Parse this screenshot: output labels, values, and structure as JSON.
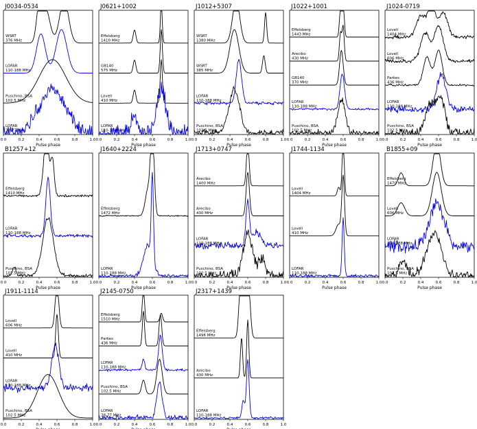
{
  "figure": {
    "x_axis_label": "Pulse phase",
    "x_ticks": [
      "0.0",
      "0.2",
      "0.4",
      "0.6",
      "0.8",
      "1.0"
    ],
    "colors": {
      "lofar": "#0000ee",
      "other": "#000000",
      "frame": "#000000"
    }
  },
  "chart_data": [
    {
      "type": "line",
      "title": "J0034-0534",
      "xlim": [
        0,
        1
      ],
      "xlabel": "Pulse phase",
      "series": [
        {
          "label": [
            "WSRT",
            "376 MHz"
          ],
          "color": "black",
          "peaks": [
            [
              0.4,
              0.03,
              0.7
            ],
            [
              0.47,
              0.05,
              0.8
            ],
            [
              0.68,
              0.05,
              1.0
            ]
          ]
        },
        {
          "label": [
            "LOFAR",
            "110-188 MHz"
          ],
          "color": "blue",
          "peaks": [
            [
              0.42,
              0.05,
              0.9
            ],
            [
              0.65,
              0.06,
              1.0
            ]
          ]
        },
        {
          "label": [
            "Puschino, BSA",
            "102.5 MHz"
          ],
          "color": "black",
          "peaks": [
            [
              0.55,
              0.15,
              1.0
            ]
          ]
        },
        {
          "label": [
            "LOFAR",
            "38-77 MHz"
          ],
          "color": "blue",
          "peaks": [
            [
              0.55,
              0.15,
              1.0
            ]
          ],
          "noise": 0.25
        }
      ]
    },
    {
      "type": "line",
      "title": "J0621+1002",
      "xlim": [
        0,
        1
      ],
      "xlabel": "Pulse phase",
      "series": [
        {
          "label": [
            "Effelsberg",
            "1410 MHz"
          ],
          "color": "black",
          "peaks": [
            [
              0.4,
              0.015,
              0.3
            ],
            [
              0.7,
              0.01,
              1.0
            ]
          ]
        },
        {
          "label": [
            "GB140",
            "575 MHz"
          ],
          "color": "black",
          "peaks": [
            [
              0.4,
              0.015,
              0.3
            ],
            [
              0.7,
              0.012,
              1.0
            ]
          ]
        },
        {
          "label": [
            "Lovell",
            "410 MHz"
          ],
          "color": "black",
          "peaks": [
            [
              0.4,
              0.015,
              0.3
            ],
            [
              0.7,
              0.012,
              1.0
            ]
          ]
        },
        {
          "label": [
            "LOFAR",
            "110-188 MHz"
          ],
          "color": "blue",
          "peaks": [
            [
              0.4,
              0.03,
              0.4
            ],
            [
              0.7,
              0.05,
              1.0
            ]
          ],
          "noise": 0.3
        }
      ]
    },
    {
      "type": "line",
      "title": "J1012+5307",
      "xlim": [
        0,
        1
      ],
      "xlabel": "Pulse phase",
      "series": [
        {
          "label": [
            "WSRT",
            "1380 MHz"
          ],
          "color": "black",
          "peaks": [
            [
              0.47,
              0.04,
              1.0
            ],
            [
              0.8,
              0.012,
              0.7
            ]
          ]
        },
        {
          "label": [
            "WSRT",
            "385 MHz"
          ],
          "color": "black",
          "peaks": [
            [
              0.45,
              0.05,
              1.0
            ],
            [
              0.78,
              0.015,
              0.4
            ]
          ]
        },
        {
          "label": [
            "LOFAR",
            "110-188 MHz"
          ],
          "color": "blue",
          "peaks": [
            [
              0.5,
              0.03,
              1.0
            ]
          ],
          "noise": 0.05
        },
        {
          "label": [
            "Puschino, BSA",
            "102.5 MHz"
          ],
          "color": "black",
          "peaks": [
            [
              0.45,
              0.06,
              1.0
            ]
          ],
          "noise": 0.12
        }
      ]
    },
    {
      "type": "line",
      "title": "J1022+1001",
      "xlim": [
        0,
        1
      ],
      "xlabel": "Pulse phase",
      "series": [
        {
          "label": [
            "Effelsberg",
            "1443 MHz"
          ],
          "color": "black",
          "peaks": [
            [
              0.57,
              0.012,
              0.8
            ],
            [
              0.6,
              0.012,
              1.0
            ]
          ]
        },
        {
          "label": [
            "Arecibo",
            "430 MHz"
          ],
          "color": "black",
          "peaks": [
            [
              0.57,
              0.012,
              0.8
            ],
            [
              0.6,
              0.012,
              1.0
            ]
          ]
        },
        {
          "label": [
            "GB140",
            "370 MHz"
          ],
          "color": "black",
          "peaks": [
            [
              0.58,
              0.02,
              1.0
            ]
          ]
        },
        {
          "label": [
            "LOFAR",
            "110-188 MHz"
          ],
          "color": "blue",
          "peaks": [
            [
              0.59,
              0.025,
              1.0
            ]
          ],
          "noise": 0.04
        },
        {
          "label": [
            "Puschino, BSA",
            "102.5 MHz"
          ],
          "color": "black",
          "peaks": [
            [
              0.58,
              0.04,
              1.0
            ]
          ],
          "noise": 0.15
        }
      ]
    },
    {
      "type": "line",
      "title": "J1024-0719",
      "xlim": [
        0,
        1
      ],
      "xlabel": "Pulse phase",
      "series": [
        {
          "label": [
            "Lovell",
            "1404 MHz"
          ],
          "color": "black",
          "peaks": [
            [
              0.4,
              0.05,
              0.6
            ],
            [
              0.52,
              0.04,
              1.0
            ],
            [
              0.65,
              0.05,
              0.7
            ]
          ],
          "noise": 0.08
        },
        {
          "label": [
            "Lovell",
            "606 MHz"
          ],
          "color": "black",
          "peaks": [
            [
              0.45,
              0.05,
              0.8
            ],
            [
              0.6,
              0.05,
              1.0
            ]
          ],
          "noise": 0.08
        },
        {
          "label": [
            "Parkes",
            "436 MHz"
          ],
          "color": "black",
          "peaks": [
            [
              0.47,
              0.04,
              0.8
            ],
            [
              0.6,
              0.04,
              1.0
            ]
          ],
          "noise": 0.04
        },
        {
          "label": [
            "LOFAR",
            "110-188 MHz"
          ],
          "color": "blue",
          "peaks": [
            [
              0.63,
              0.05,
              1.0
            ]
          ],
          "noise": 0.15
        },
        {
          "label": [
            "Puschino, BSA",
            "102.5 MHz"
          ],
          "color": "black",
          "peaks": [
            [
              0.5,
              0.05,
              0.8
            ],
            [
              0.62,
              0.05,
              1.0
            ]
          ],
          "noise": 0.18
        }
      ]
    },
    {
      "type": "line",
      "title": "B1257+12",
      "xlim": [
        0,
        1
      ],
      "xlabel": "Pulse phase",
      "series": [
        {
          "label": [
            "Effelsberg",
            "1410 MHz"
          ],
          "color": "black",
          "peaks": [
            [
              0.48,
              0.03,
              1.0
            ],
            [
              0.55,
              0.02,
              0.6
            ]
          ],
          "noise": 0.03
        },
        {
          "label": [
            "LOFAR",
            "110-188 MHz"
          ],
          "color": "blue",
          "peaks": [
            [
              0.5,
              0.025,
              1.0
            ]
          ],
          "noise": 0.04
        },
        {
          "label": [
            "Puschino, BSA",
            "102.5 MHz"
          ],
          "color": "black",
          "peaks": [
            [
              0.5,
              0.06,
              1.0
            ],
            [
              0.12,
              0.02,
              0.15
            ]
          ],
          "noise": 0.04
        }
      ]
    },
    {
      "type": "line",
      "title": "J1640+2224",
      "xlim": [
        0,
        1
      ],
      "xlabel": "Pulse phase",
      "series": [
        {
          "label": [
            "Effelsberg",
            "1472 MHz"
          ],
          "color": "black",
          "peaks": [
            [
              0.6,
              0.02,
              1.0
            ],
            [
              0.55,
              0.03,
              0.3
            ]
          ],
          "noise": 0.01
        },
        {
          "label": [
            "LOFAR",
            "110-188 MHz"
          ],
          "color": "blue",
          "peaks": [
            [
              0.6,
              0.012,
              1.0
            ],
            [
              0.55,
              0.05,
              0.35
            ]
          ],
          "noise": 0.04
        }
      ]
    },
    {
      "type": "line",
      "title": "J1713+0747",
      "xlim": [
        0,
        1
      ],
      "xlabel": "Pulse phase",
      "series": [
        {
          "label": [
            "Arecibo",
            "1400 MHz"
          ],
          "color": "black",
          "peaks": [
            [
              0.6,
              0.015,
              1.0
            ]
          ]
        },
        {
          "label": [
            "Arecibo",
            "430 MHz"
          ],
          "color": "black",
          "peaks": [
            [
              0.6,
              0.018,
              1.0
            ]
          ]
        },
        {
          "label": [
            "LOFAR",
            "110-188 MHz"
          ],
          "color": "blue",
          "peaks": [
            [
              0.6,
              0.02,
              1.0
            ],
            [
              0.7,
              0.05,
              0.3
            ]
          ],
          "noise": 0.12
        },
        {
          "label": [
            "Puschino, BSA",
            "102.5 MHz"
          ],
          "color": "black",
          "peaks": [
            [
              0.6,
              0.05,
              1.0
            ],
            [
              0.75,
              0.04,
              0.4
            ]
          ],
          "noise": 0.18
        }
      ]
    },
    {
      "type": "line",
      "title": "J1744-1134",
      "xlim": [
        0,
        1
      ],
      "xlabel": "Pulse phase",
      "series": [
        {
          "label": [
            "Lovell",
            "1404 MHz"
          ],
          "color": "black",
          "peaks": [
            [
              0.6,
              0.012,
              1.0
            ],
            [
              0.55,
              0.015,
              0.15
            ]
          ]
        },
        {
          "label": [
            "Lovell",
            "410 MHz"
          ],
          "color": "black",
          "peaks": [
            [
              0.6,
              0.015,
              1.0
            ],
            [
              0.55,
              0.03,
              0.2
            ]
          ]
        },
        {
          "label": [
            "LOFAR",
            "110-188 MHz"
          ],
          "color": "blue",
          "peaks": [
            [
              0.6,
              0.012,
              1.0
            ]
          ],
          "noise": 0.04
        }
      ]
    },
    {
      "type": "line",
      "title": "B1855+09",
      "xlim": [
        0,
        1
      ],
      "xlabel": "Pulse phase",
      "series": [
        {
          "label": [
            "Effelsberg",
            "1470 MHz"
          ],
          "color": "black",
          "peaks": [
            [
              0.58,
              0.04,
              1.0
            ],
            [
              0.18,
              0.03,
              0.3
            ]
          ]
        },
        {
          "label": [
            "Lovell",
            "606 MHz"
          ],
          "color": "black",
          "peaks": [
            [
              0.58,
              0.05,
              1.0
            ],
            [
              0.18,
              0.04,
              0.3
            ]
          ]
        },
        {
          "label": [
            "LOFAR",
            "110-188 MHz"
          ],
          "color": "blue",
          "peaks": [
            [
              0.58,
              0.08,
              1.0
            ]
          ],
          "noise": 0.22
        },
        {
          "label": [
            "Puschino, BSA",
            "102.5 MHz"
          ],
          "color": "black",
          "peaks": [
            [
              0.55,
              0.08,
              1.0
            ],
            [
              0.2,
              0.04,
              0.35
            ]
          ],
          "noise": 0.18
        }
      ]
    },
    {
      "type": "line",
      "title": "J1911-1114",
      "xlim": [
        0,
        1
      ],
      "xlabel": "Pulse phase",
      "series": [
        {
          "label": [
            "Lovell",
            "606 MHz"
          ],
          "color": "black",
          "peaks": [
            [
              0.6,
              0.02,
              1.0
            ]
          ]
        },
        {
          "label": [
            "Lovell",
            "410 MHz"
          ],
          "color": "black",
          "peaks": [
            [
              0.6,
              0.015,
              1.0
            ]
          ]
        },
        {
          "label": [
            "LOFAR",
            "110-188 MHz"
          ],
          "color": "blue",
          "peaks": [
            [
              0.58,
              0.04,
              1.0
            ]
          ],
          "noise": 0.12
        },
        {
          "label": [
            "Puschino, BSA",
            "102.5 MHz"
          ],
          "color": "black",
          "peaks": [
            [
              0.5,
              0.12,
              1.0
            ]
          ]
        }
      ]
    },
    {
      "type": "line",
      "title": "J2145-0750",
      "xlim": [
        0,
        1
      ],
      "xlabel": "Pulse phase",
      "series": [
        {
          "label": [
            "Effelsberg",
            "1510 MHz"
          ],
          "color": "black",
          "peaks": [
            [
              0.5,
              0.012,
              1.0
            ],
            [
              0.7,
              0.015,
              0.25
            ]
          ]
        },
        {
          "label": [
            "Parkes",
            "436 MHz"
          ],
          "color": "black",
          "peaks": [
            [
              0.5,
              0.012,
              1.0
            ],
            [
              0.69,
              0.015,
              0.9
            ]
          ]
        },
        {
          "label": [
            "LOFAR",
            "110-188 MHz"
          ],
          "color": "blue",
          "peaks": [
            [
              0.5,
              0.015,
              0.3
            ],
            [
              0.69,
              0.02,
              1.0
            ]
          ],
          "noise": 0.05
        },
        {
          "label": [
            "Puschino, BSA",
            "102.5 MHz"
          ],
          "color": "black",
          "peaks": [
            [
              0.5,
              0.02,
              0.4
            ],
            [
              0.68,
              0.03,
              1.0
            ]
          ]
        },
        {
          "label": [
            "LOFAR",
            "38-77 MHz"
          ],
          "color": "blue",
          "peaks": [
            [
              0.68,
              0.03,
              1.0
            ]
          ],
          "noise": 0.12
        }
      ]
    },
    {
      "type": "line",
      "title": "J2317+1439",
      "xlim": [
        0,
        1
      ],
      "xlabel": "Pulse phase",
      "series": [
        {
          "label": [
            "Effelsberg",
            "1496 MHz"
          ],
          "color": "black",
          "peaks": [
            [
              0.52,
              0.02,
              0.9
            ],
            [
              0.56,
              0.02,
              1.0
            ],
            [
              0.61,
              0.02,
              0.85
            ]
          ]
        },
        {
          "label": [
            "Arecibo",
            "430 MHz"
          ],
          "color": "black",
          "peaks": [
            [
              0.53,
              0.012,
              0.7
            ],
            [
              0.6,
              0.012,
              1.0
            ]
          ]
        },
        {
          "label": [
            "LOFAR",
            "110-188 MHz"
          ],
          "color": "blue",
          "peaks": [
            [
              0.6,
              0.015,
              1.0
            ],
            [
              0.55,
              0.015,
              0.3
            ]
          ],
          "noise": 0.03
        }
      ]
    }
  ]
}
